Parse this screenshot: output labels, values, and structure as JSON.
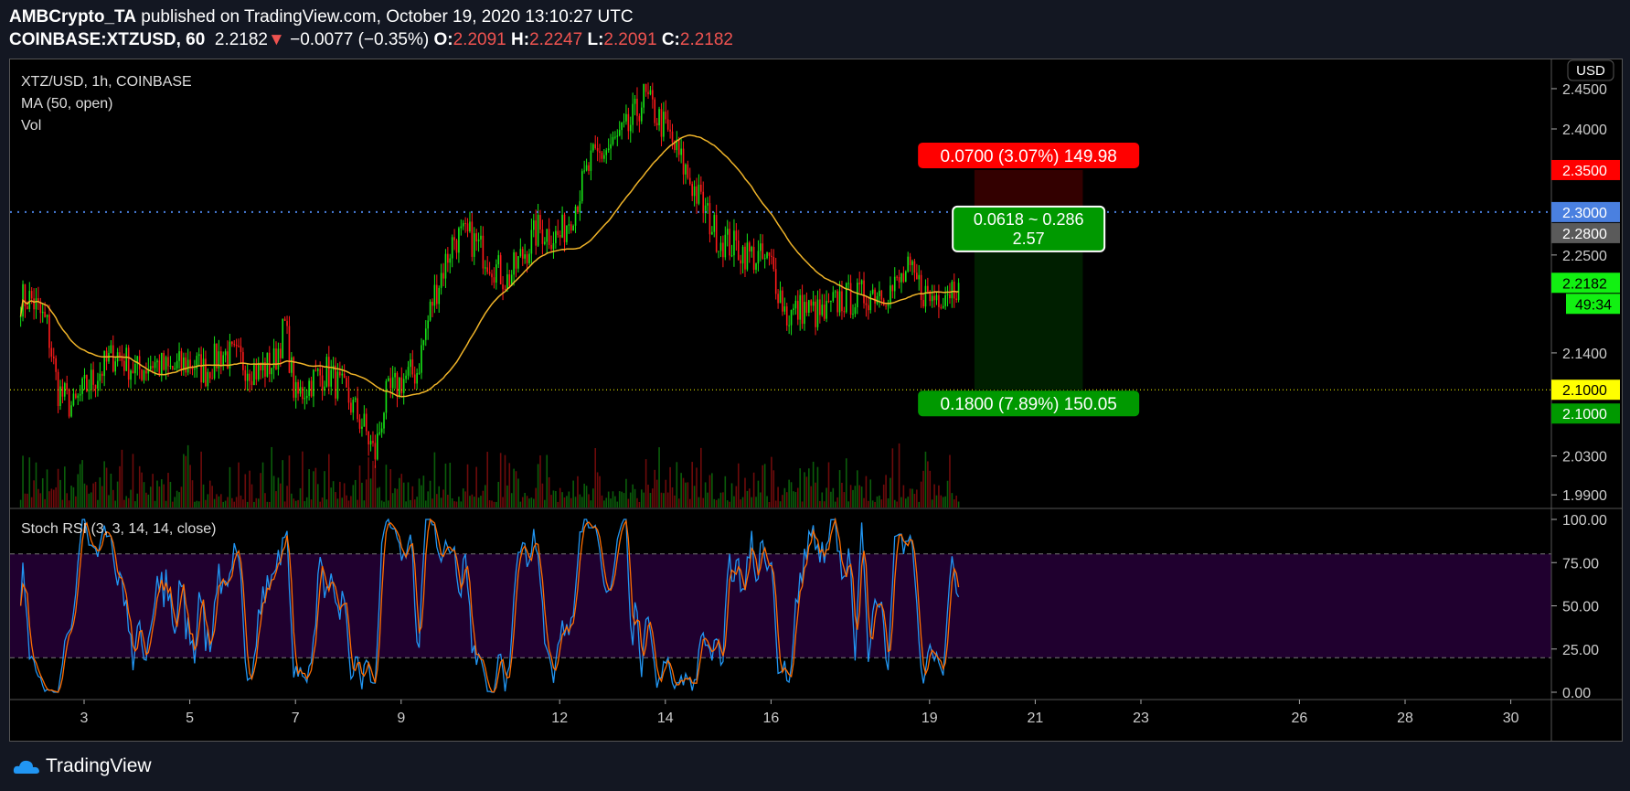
{
  "header": {
    "publisher": "AMBCrypto_TA",
    "published_text": "published on TradingView.com, October 19, 2020 13:10:27 UTC",
    "symbol": "COINBASE:XTZUSD, 60",
    "last": "2.2182",
    "change": "−0.0077 (−0.35%)",
    "o_label": "O:",
    "o": "2.2091",
    "h_label": "H:",
    "h": "2.2247",
    "l_label": "L:",
    "l": "2.2091",
    "c_label": "C:",
    "c": "2.2182"
  },
  "legend": {
    "title": "XTZ/USD, 1h, COINBASE",
    "ma": "MA (50, open)",
    "vol": "Vol",
    "rsi": "Stoch RSI (3, 3, 14, 14, close)"
  },
  "currency": "USD",
  "countdown": "49:34",
  "position": {
    "target_label": "0.0700 (3.07%) 149.98",
    "ratio_top": "0.0618 ~ 0.286",
    "ratio_bottom": "2.57",
    "stop_label": "0.1800 (7.89%) 150.05"
  },
  "price_badges": [
    {
      "text": "2.3500",
      "value": 2.35,
      "bg": "#ff0000",
      "fg": "#ffffff"
    },
    {
      "text": "2.3000",
      "value": 2.3,
      "bg": "#4a80e0",
      "fg": "#ffffff"
    },
    {
      "text": "2.2800",
      "value": 2.28,
      "bg": "#5a5a5a",
      "fg": "#ffffff"
    },
    {
      "text": "2.2182",
      "value": 2.2182,
      "bg": "#12f012",
      "fg": "#000000"
    },
    {
      "text": "2.1000",
      "value": 2.1,
      "bg": "#ffff00",
      "fg": "#000000"
    },
    {
      "text": "2.1000",
      "value": 2.1,
      "bg": "#009900",
      "fg": "#ffffff",
      "offset": 1
    }
  ],
  "brand": "TradingView",
  "colors": {
    "up": "#17e617",
    "down": "#ff1a1a",
    "ma": "#f0b429",
    "k": "#2196f3",
    "d": "#ff6d00",
    "band": "#20002f",
    "hline_blue": "#4a80e0",
    "hline_yellow": "#ffff00"
  },
  "chart_data": {
    "type": "candlestick",
    "price_scale": "log",
    "yticks": [
      "2.4500",
      "2.4000",
      "2.3500",
      "2.3000",
      "2.2500",
      "2.1400",
      "2.1000",
      "2.0300",
      "1.9900"
    ],
    "ytick_values": [
      2.45,
      2.4,
      2.35,
      2.3,
      2.25,
      2.14,
      2.1,
      2.03,
      1.99
    ],
    "xticks": [
      "3",
      "5",
      "7",
      "9",
      "12",
      "14",
      "16",
      "19",
      "21",
      "23",
      "26",
      "28",
      "30"
    ],
    "xtick_days": [
      3,
      5,
      7,
      9,
      12,
      14,
      16,
      19,
      21,
      23,
      26,
      28,
      30
    ],
    "rsi_ticks": [
      "100.00",
      "75.00",
      "50.00",
      "25.00",
      "0.00"
    ],
    "rsi_tick_values": [
      100,
      75,
      50,
      25,
      0
    ],
    "rsi_band": [
      20,
      80
    ],
    "horizontal_lines": [
      2.3,
      2.1
    ],
    "position_tool": {
      "entry": 2.28,
      "target": 2.35,
      "stop": 2.1,
      "start_day": 19.85,
      "end_day": 21.9
    },
    "price_path": [
      [
        1.8,
        2.2
      ],
      [
        2.0,
        2.2
      ],
      [
        2.3,
        2.17
      ],
      [
        2.5,
        2.1
      ],
      [
        2.8,
        2.08
      ],
      [
        3.0,
        2.1
      ],
      [
        3.3,
        2.12
      ],
      [
        3.6,
        2.14
      ],
      [
        4.0,
        2.12
      ],
      [
        4.3,
        2.13
      ],
      [
        4.6,
        2.12
      ],
      [
        5.0,
        2.13
      ],
      [
        5.3,
        2.12
      ],
      [
        5.6,
        2.14
      ],
      [
        6.0,
        2.13
      ],
      [
        6.3,
        2.12
      ],
      [
        6.6,
        2.13
      ],
      [
        6.8,
        2.17
      ],
      [
        7.0,
        2.09
      ],
      [
        7.3,
        2.11
      ],
      [
        7.6,
        2.12
      ],
      [
        8.0,
        2.09
      ],
      [
        8.3,
        2.06
      ],
      [
        8.5,
        2.03
      ],
      [
        8.7,
        2.09
      ],
      [
        9.0,
        2.11
      ],
      [
        9.3,
        2.12
      ],
      [
        9.6,
        2.2
      ],
      [
        10.0,
        2.27
      ],
      [
        10.3,
        2.27
      ],
      [
        10.6,
        2.25
      ],
      [
        11.0,
        2.22
      ],
      [
        11.3,
        2.25
      ],
      [
        11.6,
        2.28
      ],
      [
        12.0,
        2.27
      ],
      [
        12.3,
        2.31
      ],
      [
        12.6,
        2.36
      ],
      [
        13.0,
        2.38
      ],
      [
        13.3,
        2.4
      ],
      [
        13.6,
        2.44
      ],
      [
        14.0,
        2.4
      ],
      [
        14.3,
        2.36
      ],
      [
        14.6,
        2.32
      ],
      [
        15.0,
        2.27
      ],
      [
        15.3,
        2.26
      ],
      [
        15.6,
        2.25
      ],
      [
        16.0,
        2.24
      ],
      [
        16.3,
        2.18
      ],
      [
        16.6,
        2.19
      ],
      [
        17.0,
        2.18
      ],
      [
        17.3,
        2.2
      ],
      [
        17.6,
        2.2
      ],
      [
        18.0,
        2.21
      ],
      [
        18.3,
        2.21
      ],
      [
        18.6,
        2.23
      ],
      [
        19.0,
        2.2
      ],
      [
        19.3,
        2.21
      ],
      [
        19.55,
        2.218
      ]
    ]
  }
}
